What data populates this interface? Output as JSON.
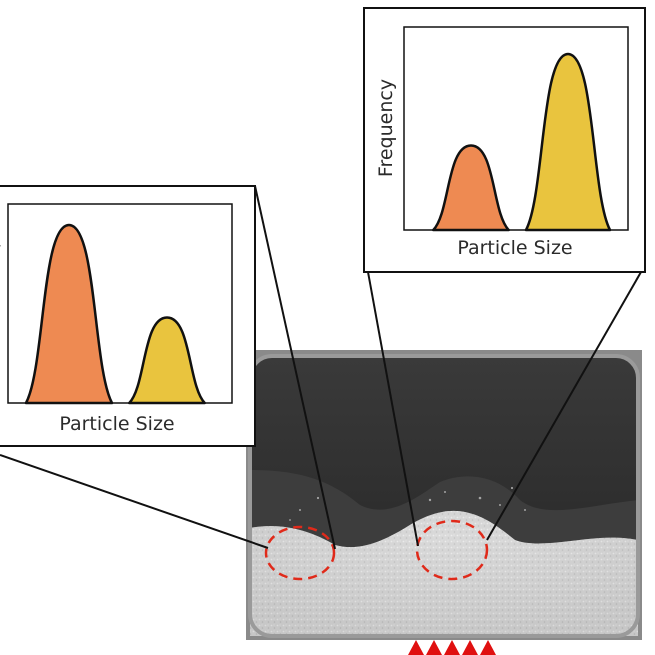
{
  "diagram": {
    "description_labels": {
      "right_xlabel": "Particle Size",
      "right_ylabel": "Frequency",
      "left_xlabel": "Particle Size"
    },
    "colors": {
      "peak_small": "#EE8A52",
      "peak_large": "#E9C43E",
      "marker": "#E01010",
      "region_circle": "#E02A1A"
    },
    "charts": [
      {
        "id": "left",
        "peaks": [
          {
            "label": "orange",
            "relative_height": 1.0
          },
          {
            "label": "yellow",
            "relative_height": 0.48
          }
        ]
      },
      {
        "id": "right",
        "peaks": [
          {
            "label": "orange",
            "relative_height": 0.48
          },
          {
            "label": "yellow",
            "relative_height": 1.0
          }
        ]
      }
    ],
    "photo": {
      "marker_count": 5,
      "highlighted_regions": 2
    }
  }
}
